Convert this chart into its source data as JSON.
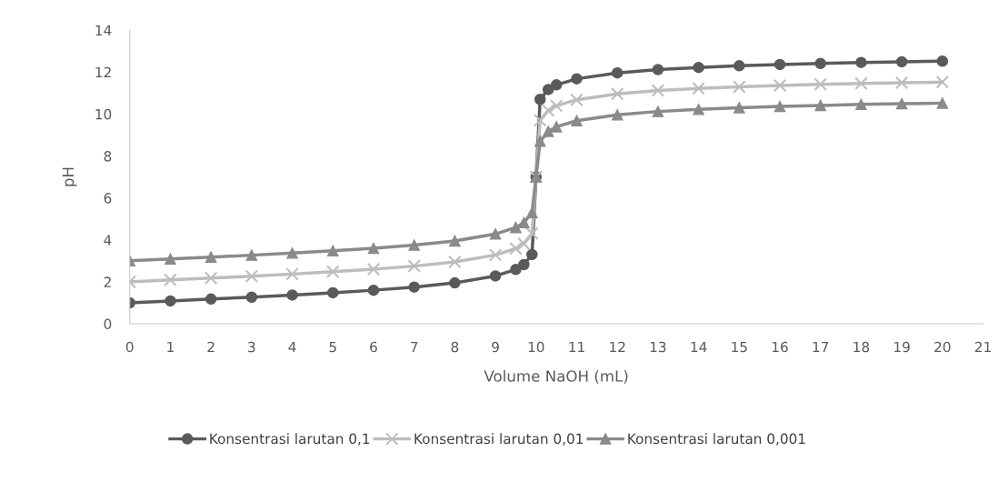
{
  "chart_data": {
    "type": "line",
    "xlabel": "Volume NaOH (mL)",
    "ylabel": "pH",
    "x": [
      0,
      1,
      2,
      3,
      4,
      5,
      6,
      7,
      8,
      9,
      9.5,
      9.7,
      9.9,
      10,
      10.1,
      10.3,
      10.5,
      11,
      12,
      13,
      14,
      15,
      16,
      17,
      18,
      19,
      20
    ],
    "xlim": [
      0,
      21
    ],
    "xticks": [
      0,
      1,
      2,
      3,
      4,
      5,
      6,
      7,
      8,
      9,
      10,
      11,
      12,
      13,
      14,
      15,
      16,
      17,
      18,
      19,
      20,
      21
    ],
    "ylim": [
      0,
      14
    ],
    "yticks": [
      0,
      2,
      4,
      6,
      8,
      10,
      12,
      14
    ],
    "grid": false,
    "legend": "bottom",
    "series": [
      {
        "name": "Konsentrasi larutan 0,1",
        "color": "#5a5a5a",
        "marker": "circle",
        "values": [
          1.0,
          1.09,
          1.18,
          1.27,
          1.37,
          1.48,
          1.6,
          1.75,
          1.95,
          2.28,
          2.59,
          2.82,
          3.3,
          7.0,
          10.7,
          11.17,
          11.39,
          11.68,
          11.96,
          12.12,
          12.22,
          12.3,
          12.36,
          12.41,
          12.46,
          12.49,
          12.52
        ]
      },
      {
        "name": "Konsentrasi larutan 0,01",
        "color": "#bdbdbd",
        "marker": "cross",
        "values": [
          2.0,
          2.09,
          2.18,
          2.27,
          2.37,
          2.48,
          2.6,
          2.75,
          2.95,
          3.28,
          3.59,
          3.82,
          4.3,
          7.0,
          9.7,
          10.17,
          10.39,
          10.68,
          10.96,
          11.12,
          11.22,
          11.3,
          11.36,
          11.41,
          11.46,
          11.49,
          11.52
        ]
      },
      {
        "name": "Konsentrasi larutan 0,001",
        "color": "#8a8a8a",
        "marker": "triangle",
        "values": [
          3.0,
          3.09,
          3.18,
          3.27,
          3.37,
          3.48,
          3.6,
          3.75,
          3.95,
          4.28,
          4.59,
          4.82,
          5.3,
          7.0,
          8.7,
          9.17,
          9.39,
          9.68,
          9.96,
          10.12,
          10.22,
          10.3,
          10.36,
          10.41,
          10.46,
          10.49,
          10.52
        ]
      }
    ]
  }
}
